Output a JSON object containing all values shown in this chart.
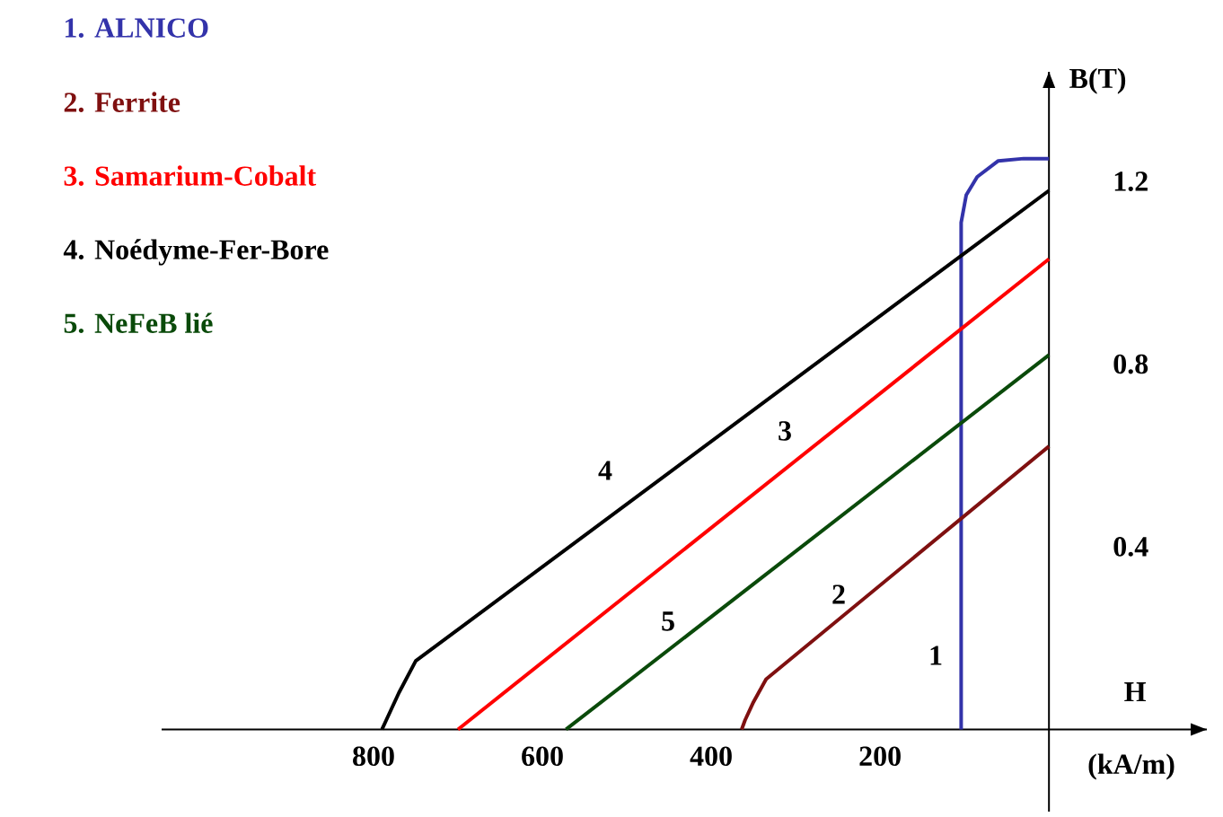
{
  "chart_data": {
    "type": "line",
    "xlabel": "H",
    "ylabel": "B(T)",
    "xlim": [
      1051,
      -187
    ],
    "ylim": [
      -0.18,
      1.44
    ],
    "xticks": [
      200,
      400,
      600,
      800
    ],
    "yticks": [
      0.4,
      0.8,
      1.2
    ],
    "grid": false,
    "legend": "top left",
    "marker": "none",
    "line_style": "solid",
    "series": [
      {
        "name": "1.   ALNICO",
        "color": "#3333aa",
        "x": [
          104,
          104,
          98,
          85,
          60,
          30,
          0
        ],
        "values": [
          0,
          1.11,
          1.17,
          1.21,
          1.245,
          1.25,
          1.25
        ]
      },
      {
        "name": "2.   Ferrite",
        "color": "#7f1010",
        "x": [
          0,
          335,
          350,
          360,
          364
        ],
        "values": [
          0.62,
          0.11,
          0.06,
          0.02,
          0
        ]
      },
      {
        "name": "3.   Samarium-Cobalt",
        "color": "#ff0000",
        "x": [
          0,
          700
        ],
        "values": [
          1.03,
          0
        ]
      },
      {
        "name": "4.   Noédyme-Fer-Bore",
        "color": "#000000",
        "x": [
          0,
          750,
          770,
          785,
          790
        ],
        "values": [
          1.18,
          0.15,
          0.08,
          0.02,
          0
        ]
      },
      {
        "name": "5.   NeFeB lié",
        "color": "#0a4a0a",
        "x": [
          0,
          572
        ],
        "values": [
          0.82,
          0
        ]
      }
    ],
    "annotations": [
      "1",
      "2",
      "3",
      "4",
      "5",
      "(kA/m)"
    ]
  }
}
